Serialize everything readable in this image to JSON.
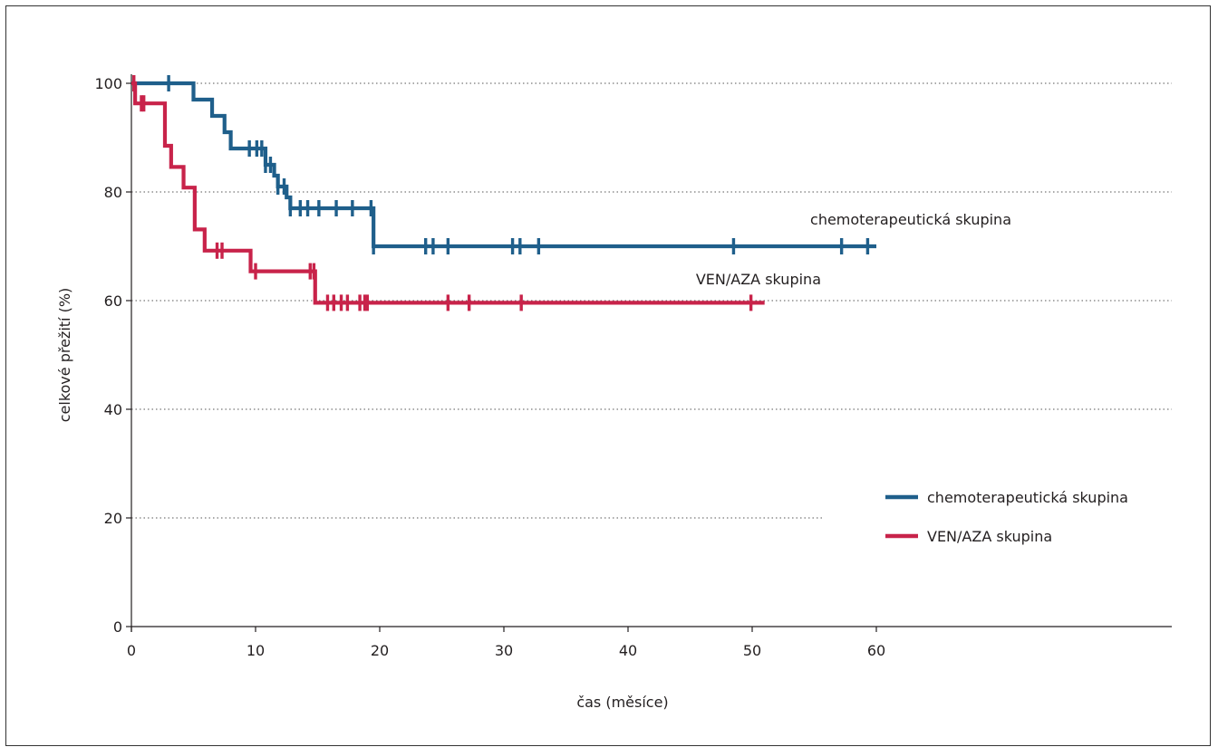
{
  "chart_data": {
    "type": "line",
    "subtype": "kaplan-meier",
    "title": "",
    "xlabel": "čas (měsíce)",
    "ylabel": "celkové přežití (%)",
    "xlim": [
      0,
      84
    ],
    "ylim": [
      0,
      100
    ],
    "xticks": [
      0,
      10,
      20,
      30,
      40,
      50,
      60
    ],
    "yticks": [
      0,
      20,
      40,
      60,
      80,
      100
    ],
    "grid": "horizontal-dotted",
    "legend_position": "right",
    "series": [
      {
        "name": "chemoterapeutická skupina",
        "color": "#1f5f8b",
        "label": "chemoterapeutická skupina",
        "steps": [
          [
            0,
            100
          ],
          [
            5,
            97
          ],
          [
            6.5,
            94
          ],
          [
            7.5,
            91
          ],
          [
            8,
            88
          ],
          [
            10.8,
            85
          ],
          [
            11.5,
            83
          ],
          [
            11.8,
            81
          ],
          [
            12.5,
            79
          ],
          [
            12.8,
            77
          ],
          [
            19.5,
            70
          ]
        ],
        "end": 60,
        "censors": [
          3,
          9.5,
          10.1,
          10.5,
          10.8,
          11.2,
          11.8,
          12.3,
          12.8,
          13.6,
          14.2,
          15.1,
          16.5,
          17.8,
          19.3,
          19.5,
          23.7,
          24.3,
          25.5,
          30.7,
          31.3,
          32.8,
          48.5,
          57.2,
          59.3
        ]
      },
      {
        "name": "VEN/AZA skupina",
        "color": "#c8234a",
        "label": "VEN/AZA skupina",
        "steps": [
          [
            0,
            100
          ],
          [
            0.3,
            96.3
          ],
          [
            2.7,
            88.5
          ],
          [
            3.2,
            84.6
          ],
          [
            4.2,
            80.8
          ],
          [
            5.1,
            73.1
          ],
          [
            5.9,
            69.2
          ],
          [
            9.6,
            65.4
          ],
          [
            14.8,
            59.6
          ]
        ],
        "end": 51,
        "censors": [
          0.2,
          0.8,
          1,
          6.9,
          7.3,
          10,
          14.4,
          14.7,
          15.8,
          16.3,
          16.9,
          17.4,
          18.4,
          18.8,
          19,
          25.5,
          27.2,
          31.4,
          49.9
        ]
      }
    ],
    "annotations": [
      {
        "text": "chemoterapeutická skupina",
        "x": 58,
        "y": 75
      },
      {
        "text": "VEN/AZA skupina",
        "x": 55.5,
        "y": 64
      }
    ],
    "legend": {
      "entries": [
        {
          "label": "chemoterapeutická skupina",
          "color": "#1f5f8b"
        },
        {
          "label": "VEN/AZA skupina",
          "color": "#c8234a"
        }
      ]
    }
  }
}
